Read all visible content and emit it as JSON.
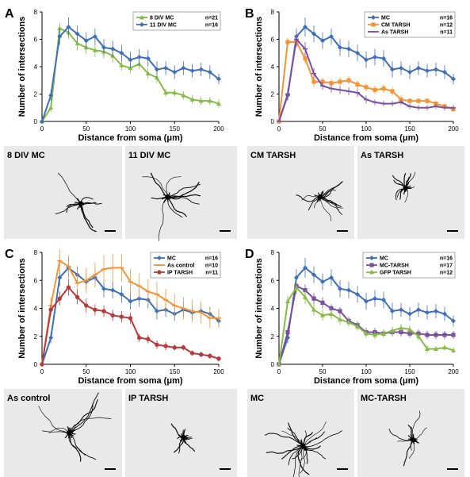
{
  "colors": {
    "blue": "#3f6fb6",
    "green": "#86bc45",
    "orange": "#f39435",
    "purple": "#7a4fa2",
    "red": "#b73a3a"
  },
  "chart_data": [
    {
      "panel": "A",
      "type": "line",
      "xlabel": "Distance from soma (μm)",
      "ylabel": "Number of intersections",
      "xlim": [
        0,
        200
      ],
      "ylim": [
        0,
        8
      ],
      "x": [
        0,
        10,
        20,
        30,
        40,
        50,
        60,
        70,
        80,
        90,
        100,
        110,
        120,
        130,
        140,
        150,
        160,
        170,
        180,
        190,
        200
      ],
      "series": [
        {
          "name": "8 DIV MC",
          "n": "n=21",
          "color": "#86bc45",
          "marker": "triangle",
          "values": [
            0,
            1.0,
            6.8,
            6.5,
            5.7,
            5.4,
            5.2,
            5.1,
            4.8,
            4.1,
            3.9,
            4.2,
            3.5,
            3.2,
            2.1,
            2.1,
            1.9,
            1.6,
            1.5,
            1.5,
            1.3
          ],
          "errors": [
            0,
            0.3,
            0.4,
            0.5,
            0.5,
            0.5,
            0.5,
            0.5,
            0.5,
            0.4,
            0.4,
            0.4,
            0.4,
            0.4,
            0.3,
            0.3,
            0.3,
            0.3,
            0.3,
            0.3,
            0.3
          ]
        },
        {
          "name": "11 DIV MC",
          "n": "n=16",
          "color": "#3f6fb6",
          "marker": "diamond",
          "values": [
            0,
            1.9,
            6.2,
            6.9,
            6.4,
            5.9,
            6.2,
            5.4,
            5.3,
            5.0,
            4.5,
            4.7,
            4.6,
            3.8,
            3.9,
            3.6,
            3.9,
            3.7,
            3.8,
            3.6,
            3.1
          ],
          "errors": [
            0,
            0.4,
            0.6,
            0.7,
            0.6,
            0.6,
            0.6,
            0.6,
            0.6,
            0.6,
            0.6,
            0.6,
            0.6,
            0.6,
            0.5,
            0.5,
            0.5,
            0.5,
            0.5,
            0.5,
            0.4
          ]
        }
      ]
    },
    {
      "panel": "B",
      "type": "line",
      "xlabel": "Distance from soma (μm)",
      "ylabel": "Number of intersections",
      "xlim": [
        0,
        200
      ],
      "ylim": [
        0,
        8
      ],
      "x": [
        0,
        10,
        20,
        30,
        40,
        50,
        60,
        70,
        80,
        90,
        100,
        110,
        120,
        130,
        140,
        150,
        160,
        170,
        180,
        190,
        200
      ],
      "series": [
        {
          "name": "MC",
          "n": "n=16",
          "color": "#3f6fb6",
          "marker": "diamond",
          "values": [
            0,
            1.9,
            6.2,
            6.9,
            6.4,
            5.9,
            6.2,
            5.4,
            5.3,
            5.0,
            4.5,
            4.7,
            4.6,
            3.8,
            3.9,
            3.6,
            3.9,
            3.7,
            3.8,
            3.6,
            3.1
          ],
          "errors": [
            0,
            0.4,
            0.6,
            0.7,
            0.6,
            0.6,
            0.6,
            0.6,
            0.6,
            0.6,
            0.6,
            0.6,
            0.6,
            0.6,
            0.5,
            0.5,
            0.5,
            0.5,
            0.5,
            0.5,
            0.4
          ]
        },
        {
          "name": "CM TARSH",
          "n": "n=12",
          "color": "#f39435",
          "marker": "square",
          "values": [
            0,
            5.8,
            5.8,
            4.6,
            2.9,
            2.9,
            2.8,
            2.9,
            3.0,
            2.7,
            2.5,
            2.3,
            2.4,
            2.2,
            1.6,
            1.5,
            1.5,
            1.5,
            1.3,
            1.1,
            0.9
          ],
          "errors": [
            0,
            0.3,
            0.4,
            0.4,
            0.4,
            0.3,
            0.3,
            0.3,
            0.3,
            0.3,
            0.3,
            0.3,
            0.3,
            0.3,
            0.3,
            0.2,
            0.2,
            0.2,
            0.2,
            0.2,
            0.2
          ]
        },
        {
          "name": "As TARSH",
          "n": "n=11",
          "color": "#7a4fa2",
          "marker": "line",
          "values": [
            0,
            2.0,
            6.0,
            5.3,
            3.5,
            2.6,
            2.4,
            2.3,
            2.2,
            2.1,
            1.6,
            1.4,
            1.3,
            1.3,
            1.4,
            1.1,
            1.0,
            1.0,
            1.1,
            1.0,
            1.0
          ],
          "errors": [
            0,
            0.4,
            0.5,
            0.5,
            0.4,
            0.3,
            0.3,
            0.3,
            0.3,
            0.3,
            0.3,
            0.2,
            0.2,
            0.2,
            0.2,
            0.2,
            0.2,
            0.2,
            0.2,
            0.2,
            0.2
          ]
        }
      ]
    },
    {
      "panel": "C",
      "type": "line",
      "xlabel": "Distance from soma (μm)",
      "ylabel": "Number of intersections",
      "xlim": [
        0,
        200
      ],
      "ylim": [
        0,
        8
      ],
      "x": [
        0,
        10,
        20,
        30,
        40,
        50,
        60,
        70,
        80,
        90,
        100,
        110,
        120,
        130,
        140,
        150,
        160,
        170,
        180,
        190,
        200
      ],
      "series": [
        {
          "name": "MC",
          "n": "n=16",
          "color": "#3f6fb6",
          "marker": "diamond",
          "values": [
            0,
            1.9,
            6.2,
            6.9,
            6.4,
            5.9,
            6.2,
            5.4,
            5.3,
            5.0,
            4.5,
            4.7,
            4.6,
            3.8,
            3.9,
            3.6,
            3.9,
            3.7,
            3.8,
            3.6,
            3.1
          ],
          "errors": [
            0,
            0.4,
            0.6,
            0.7,
            0.6,
            0.6,
            0.6,
            0.6,
            0.6,
            0.6,
            0.6,
            0.6,
            0.6,
            0.6,
            0.5,
            0.5,
            0.5,
            0.5,
            0.5,
            0.5,
            0.4
          ]
        },
        {
          "name": "As control",
          "n": "n=10",
          "color": "#f39435",
          "marker": "line",
          "values": [
            0,
            4.2,
            7.4,
            7.0,
            5.8,
            6.0,
            6.4,
            6.8,
            6.9,
            6.9,
            5.9,
            5.6,
            5.2,
            5.0,
            4.6,
            4.2,
            4.0,
            3.8,
            3.7,
            3.3,
            3.3
          ],
          "errors": [
            0,
            0.6,
            0.8,
            0.8,
            0.9,
            0.9,
            0.9,
            1.0,
            1.0,
            1.0,
            0.9,
            0.9,
            0.9,
            0.9,
            0.8,
            0.8,
            0.8,
            0.8,
            0.8,
            0.7,
            0.7
          ]
        },
        {
          "name": "IP TARSH",
          "n": "n=11",
          "color": "#b73a3a",
          "marker": "circle",
          "values": [
            0,
            3.9,
            4.7,
            5.5,
            4.8,
            4.2,
            3.9,
            3.8,
            3.5,
            3.4,
            3.3,
            1.9,
            1.8,
            1.4,
            1.3,
            1.2,
            1.2,
            0.8,
            0.7,
            0.6,
            0.4
          ],
          "errors": [
            0,
            0.4,
            0.5,
            0.6,
            0.5,
            0.5,
            0.4,
            0.4,
            0.4,
            0.4,
            0.4,
            0.3,
            0.3,
            0.3,
            0.3,
            0.2,
            0.2,
            0.2,
            0.2,
            0.2,
            0.2
          ]
        }
      ]
    },
    {
      "panel": "D",
      "type": "line",
      "xlabel": "Distance from soma (μm)",
      "ylabel": "Number of intersections",
      "xlim": [
        0,
        200
      ],
      "ylim": [
        0,
        8
      ],
      "x": [
        0,
        10,
        20,
        30,
        40,
        50,
        60,
        70,
        80,
        90,
        100,
        110,
        120,
        130,
        140,
        150,
        160,
        170,
        180,
        190,
        200
      ],
      "series": [
        {
          "name": "MC",
          "n": "n=16",
          "color": "#3f6fb6",
          "marker": "diamond",
          "values": [
            0,
            1.9,
            6.2,
            6.9,
            6.4,
            5.9,
            6.2,
            5.4,
            5.3,
            5.0,
            4.5,
            4.7,
            4.6,
            3.8,
            3.9,
            3.6,
            3.9,
            3.7,
            3.8,
            3.6,
            3.1
          ],
          "errors": [
            0,
            0.4,
            0.6,
            0.7,
            0.6,
            0.6,
            0.6,
            0.6,
            0.6,
            0.6,
            0.6,
            0.6,
            0.6,
            0.6,
            0.5,
            0.5,
            0.5,
            0.5,
            0.5,
            0.5,
            0.4
          ]
        },
        {
          "name": "MC-TARSH",
          "n": "n=17",
          "color": "#7a4fa2",
          "marker": "square",
          "values": [
            0,
            2.3,
            5.6,
            5.3,
            4.7,
            4.4,
            4.0,
            3.8,
            3.1,
            2.8,
            2.3,
            2.3,
            2.2,
            2.3,
            2.3,
            2.2,
            2.2,
            2.1,
            2.1,
            2.1,
            2.1
          ],
          "errors": [
            0,
            0.3,
            0.4,
            0.4,
            0.4,
            0.4,
            0.3,
            0.3,
            0.3,
            0.3,
            0.3,
            0.3,
            0.3,
            0.3,
            0.3,
            0.3,
            0.3,
            0.3,
            0.3,
            0.3,
            0.3
          ]
        },
        {
          "name": "GFP TARSH",
          "n": "n=12",
          "color": "#86bc45",
          "marker": "triangle",
          "values": [
            0,
            4.5,
            5.5,
            4.8,
            3.9,
            3.5,
            3.6,
            3.2,
            3.0,
            2.7,
            2.2,
            2.1,
            2.2,
            2.4,
            2.6,
            2.5,
            2.0,
            1.1,
            1.1,
            1.2,
            1.0
          ],
          "errors": [
            0,
            0.4,
            0.5,
            0.5,
            0.4,
            0.4,
            0.4,
            0.4,
            0.3,
            0.3,
            0.3,
            0.3,
            0.3,
            0.3,
            0.3,
            0.3,
            0.3,
            0.3,
            0.2,
            0.2,
            0.2
          ]
        }
      ]
    }
  ],
  "image_panels": [
    {
      "group": "A",
      "labels": [
        "8 DIV MC",
        "11 DIV MC"
      ]
    },
    {
      "group": "B",
      "labels": [
        "CM TARSH",
        "As TARSH"
      ]
    },
    {
      "group": "C",
      "labels": [
        "As control",
        "IP TARSH"
      ]
    },
    {
      "group": "D",
      "labels": [
        "MC",
        "MC-TARSH"
      ]
    }
  ]
}
